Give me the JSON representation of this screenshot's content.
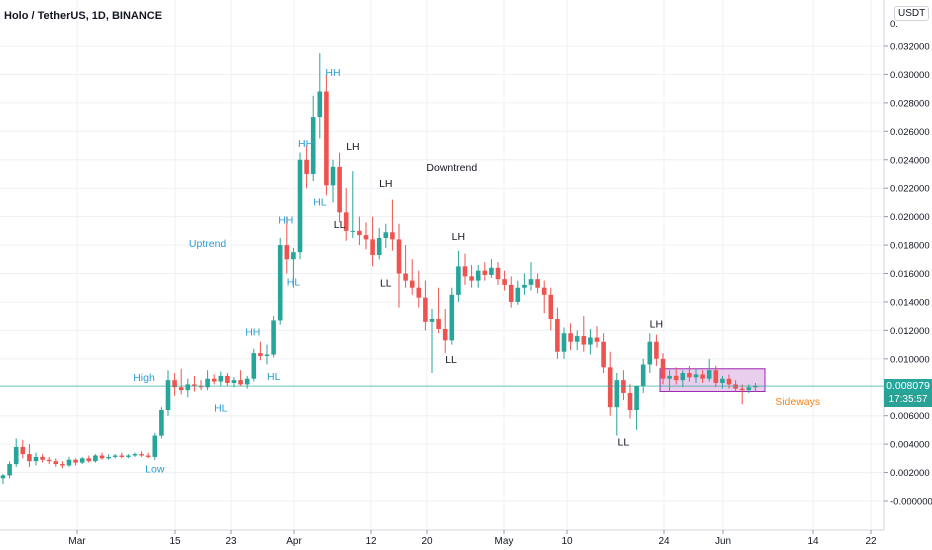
{
  "title": "Holo / TetherUS, 1D, BINANCE",
  "unit_badge": "USDT",
  "last_price": "0.008079",
  "countdown": "17:35:57",
  "colors": {
    "up": "#26a69a",
    "down": "#ef5350",
    "label_blue": "#2b9ed5",
    "label_black": "#131722",
    "label_orange": "#f7841c",
    "box_fill": "#e1bee7",
    "box_stroke": "#9c27b0",
    "price_line": "#26a69a",
    "grid": "#eef0f4"
  },
  "chart_data": {
    "type": "candlestick",
    "y_ticks": [
      "0.032000",
      "0.030000",
      "0.028000",
      "0.026000",
      "0.024000",
      "0.022000",
      "0.020000",
      "0.018000",
      "0.016000",
      "0.014000",
      "0.012000",
      "0.010000",
      "0.006000",
      "0.004000",
      "0.002000",
      "-0.000000"
    ],
    "y_top_tick_visible": "0.",
    "x_ticks": [
      "Mar",
      "15",
      "23",
      "Apr",
      "12",
      "20",
      "May",
      "10",
      "24",
      "Jun",
      "14",
      "22"
    ],
    "ylim": [
      -0.0005,
      0.0335
    ],
    "candles": [
      {
        "o": 0.0016,
        "h": 0.0019,
        "l": 0.0012,
        "c": 0.0018
      },
      {
        "o": 0.0018,
        "h": 0.0028,
        "l": 0.0016,
        "c": 0.0026
      },
      {
        "o": 0.0026,
        "h": 0.0044,
        "l": 0.0024,
        "c": 0.0038
      },
      {
        "o": 0.0038,
        "h": 0.0043,
        "l": 0.003,
        "c": 0.0033
      },
      {
        "o": 0.0033,
        "h": 0.004,
        "l": 0.0024,
        "c": 0.0028
      },
      {
        "o": 0.0028,
        "h": 0.0034,
        "l": 0.0025,
        "c": 0.0031
      },
      {
        "o": 0.0031,
        "h": 0.0033,
        "l": 0.0027,
        "c": 0.0029
      },
      {
        "o": 0.0029,
        "h": 0.0031,
        "l": 0.0026,
        "c": 0.0028
      },
      {
        "o": 0.0028,
        "h": 0.003,
        "l": 0.0024,
        "c": 0.0026
      },
      {
        "o": 0.0026,
        "h": 0.0028,
        "l": 0.0023,
        "c": 0.0025
      },
      {
        "o": 0.0025,
        "h": 0.0031,
        "l": 0.0024,
        "c": 0.0029
      },
      {
        "o": 0.0029,
        "h": 0.003,
        "l": 0.0025,
        "c": 0.0027
      },
      {
        "o": 0.0027,
        "h": 0.0031,
        "l": 0.0026,
        "c": 0.003
      },
      {
        "o": 0.003,
        "h": 0.0032,
        "l": 0.0027,
        "c": 0.0028
      },
      {
        "o": 0.0028,
        "h": 0.0033,
        "l": 0.0027,
        "c": 0.0032
      },
      {
        "o": 0.0032,
        "h": 0.0034,
        "l": 0.0029,
        "c": 0.003
      },
      {
        "o": 0.003,
        "h": 0.0033,
        "l": 0.0029,
        "c": 0.0031
      },
      {
        "o": 0.0031,
        "h": 0.0033,
        "l": 0.003,
        "c": 0.0032
      },
      {
        "o": 0.0032,
        "h": 0.0034,
        "l": 0.003,
        "c": 0.0031
      },
      {
        "o": 0.0031,
        "h": 0.0033,
        "l": 0.003,
        "c": 0.0032
      },
      {
        "o": 0.0032,
        "h": 0.0034,
        "l": 0.0031,
        "c": 0.0033
      },
      {
        "o": 0.0033,
        "h": 0.0035,
        "l": 0.0031,
        "c": 0.0032
      },
      {
        "o": 0.0032,
        "h": 0.0034,
        "l": 0.003,
        "c": 0.0031
      },
      {
        "o": 0.0031,
        "h": 0.0048,
        "l": 0.0029,
        "c": 0.0046
      },
      {
        "o": 0.0046,
        "h": 0.0066,
        "l": 0.0044,
        "c": 0.0064
      },
      {
        "o": 0.0064,
        "h": 0.0092,
        "l": 0.006,
        "c": 0.0085
      },
      {
        "o": 0.0085,
        "h": 0.009,
        "l": 0.0074,
        "c": 0.008
      },
      {
        "o": 0.008,
        "h": 0.0093,
        "l": 0.0075,
        "c": 0.0078
      },
      {
        "o": 0.0078,
        "h": 0.0086,
        "l": 0.0073,
        "c": 0.0082
      },
      {
        "o": 0.0082,
        "h": 0.0088,
        "l": 0.0077,
        "c": 0.0081
      },
      {
        "o": 0.0081,
        "h": 0.0085,
        "l": 0.0078,
        "c": 0.008
      },
      {
        "o": 0.008,
        "h": 0.0092,
        "l": 0.0078,
        "c": 0.0086
      },
      {
        "o": 0.0086,
        "h": 0.0089,
        "l": 0.0082,
        "c": 0.0084
      },
      {
        "o": 0.0084,
        "h": 0.0091,
        "l": 0.0081,
        "c": 0.0088
      },
      {
        "o": 0.0088,
        "h": 0.009,
        "l": 0.0081,
        "c": 0.0083
      },
      {
        "o": 0.0083,
        "h": 0.0087,
        "l": 0.008,
        "c": 0.0085
      },
      {
        "o": 0.0085,
        "h": 0.0092,
        "l": 0.0081,
        "c": 0.0082
      },
      {
        "o": 0.0082,
        "h": 0.0088,
        "l": 0.0079,
        "c": 0.0086
      },
      {
        "o": 0.0086,
        "h": 0.0107,
        "l": 0.0084,
        "c": 0.0104
      },
      {
        "o": 0.0104,
        "h": 0.0112,
        "l": 0.0099,
        "c": 0.0102
      },
      {
        "o": 0.0102,
        "h": 0.011,
        "l": 0.0096,
        "c": 0.0103
      },
      {
        "o": 0.0103,
        "h": 0.013,
        "l": 0.0101,
        "c": 0.0127
      },
      {
        "o": 0.0127,
        "h": 0.0185,
        "l": 0.0124,
        "c": 0.018
      },
      {
        "o": 0.018,
        "h": 0.02,
        "l": 0.016,
        "c": 0.017
      },
      {
        "o": 0.017,
        "h": 0.0178,
        "l": 0.015,
        "c": 0.0175
      },
      {
        "o": 0.0175,
        "h": 0.0245,
        "l": 0.017,
        "c": 0.024
      },
      {
        "o": 0.024,
        "h": 0.025,
        "l": 0.022,
        "c": 0.023
      },
      {
        "o": 0.023,
        "h": 0.0285,
        "l": 0.0225,
        "c": 0.027
      },
      {
        "o": 0.027,
        "h": 0.0315,
        "l": 0.0255,
        "c": 0.0288
      },
      {
        "o": 0.0288,
        "h": 0.03,
        "l": 0.0215,
        "c": 0.0222
      },
      {
        "o": 0.0222,
        "h": 0.024,
        "l": 0.021,
        "c": 0.0235
      },
      {
        "o": 0.0235,
        "h": 0.0245,
        "l": 0.0196,
        "c": 0.0203
      },
      {
        "o": 0.0203,
        "h": 0.022,
        "l": 0.0183,
        "c": 0.019
      },
      {
        "o": 0.019,
        "h": 0.0232,
        "l": 0.0185,
        "c": 0.019
      },
      {
        "o": 0.019,
        "h": 0.02,
        "l": 0.018,
        "c": 0.0187
      },
      {
        "o": 0.0187,
        "h": 0.0196,
        "l": 0.0177,
        "c": 0.0184
      },
      {
        "o": 0.0184,
        "h": 0.02,
        "l": 0.0165,
        "c": 0.0173
      },
      {
        "o": 0.0173,
        "h": 0.0192,
        "l": 0.017,
        "c": 0.0185
      },
      {
        "o": 0.0185,
        "h": 0.0195,
        "l": 0.0178,
        "c": 0.0189
      },
      {
        "o": 0.0189,
        "h": 0.0212,
        "l": 0.0176,
        "c": 0.0184
      },
      {
        "o": 0.0184,
        "h": 0.0195,
        "l": 0.0136,
        "c": 0.016
      },
      {
        "o": 0.016,
        "h": 0.018,
        "l": 0.015,
        "c": 0.0155
      },
      {
        "o": 0.0155,
        "h": 0.017,
        "l": 0.0145,
        "c": 0.015
      },
      {
        "o": 0.015,
        "h": 0.0162,
        "l": 0.0136,
        "c": 0.0143
      },
      {
        "o": 0.0143,
        "h": 0.0155,
        "l": 0.012,
        "c": 0.0126
      },
      {
        "o": 0.0126,
        "h": 0.0135,
        "l": 0.009,
        "c": 0.0128
      },
      {
        "o": 0.0128,
        "h": 0.015,
        "l": 0.0118,
        "c": 0.0121
      },
      {
        "o": 0.0121,
        "h": 0.0135,
        "l": 0.0104,
        "c": 0.0113
      },
      {
        "o": 0.0113,
        "h": 0.015,
        "l": 0.011,
        "c": 0.0145
      },
      {
        "o": 0.0145,
        "h": 0.0176,
        "l": 0.014,
        "c": 0.0165
      },
      {
        "o": 0.0165,
        "h": 0.0174,
        "l": 0.0152,
        "c": 0.0158
      },
      {
        "o": 0.0158,
        "h": 0.0166,
        "l": 0.015,
        "c": 0.0155
      },
      {
        "o": 0.0155,
        "h": 0.0166,
        "l": 0.015,
        "c": 0.0162
      },
      {
        "o": 0.0162,
        "h": 0.0168,
        "l": 0.0155,
        "c": 0.0159
      },
      {
        "o": 0.0159,
        "h": 0.017,
        "l": 0.0157,
        "c": 0.0164
      },
      {
        "o": 0.0164,
        "h": 0.0168,
        "l": 0.0152,
        "c": 0.0156
      },
      {
        "o": 0.0156,
        "h": 0.0162,
        "l": 0.0148,
        "c": 0.0152
      },
      {
        "o": 0.0152,
        "h": 0.0158,
        "l": 0.0136,
        "c": 0.014
      },
      {
        "o": 0.014,
        "h": 0.0155,
        "l": 0.0138,
        "c": 0.015
      },
      {
        "o": 0.015,
        "h": 0.016,
        "l": 0.0145,
        "c": 0.0152
      },
      {
        "o": 0.0152,
        "h": 0.0168,
        "l": 0.0148,
        "c": 0.0156
      },
      {
        "o": 0.0156,
        "h": 0.016,
        "l": 0.0146,
        "c": 0.015
      },
      {
        "o": 0.015,
        "h": 0.0155,
        "l": 0.0132,
        "c": 0.0145
      },
      {
        "o": 0.0145,
        "h": 0.015,
        "l": 0.012,
        "c": 0.0128
      },
      {
        "o": 0.0128,
        "h": 0.0136,
        "l": 0.01,
        "c": 0.0105
      },
      {
        "o": 0.0105,
        "h": 0.0122,
        "l": 0.01,
        "c": 0.0118
      },
      {
        "o": 0.0118,
        "h": 0.0125,
        "l": 0.0106,
        "c": 0.0112
      },
      {
        "o": 0.0112,
        "h": 0.012,
        "l": 0.0106,
        "c": 0.0116
      },
      {
        "o": 0.0116,
        "h": 0.013,
        "l": 0.0105,
        "c": 0.011
      },
      {
        "o": 0.011,
        "h": 0.0121,
        "l": 0.0103,
        "c": 0.0115
      },
      {
        "o": 0.0115,
        "h": 0.0123,
        "l": 0.0108,
        "c": 0.0112
      },
      {
        "o": 0.0112,
        "h": 0.0118,
        "l": 0.009,
        "c": 0.0094
      },
      {
        "o": 0.0094,
        "h": 0.0105,
        "l": 0.006,
        "c": 0.0066
      },
      {
        "o": 0.0066,
        "h": 0.009,
        "l": 0.0046,
        "c": 0.0085
      },
      {
        "o": 0.0085,
        "h": 0.0092,
        "l": 0.0071,
        "c": 0.0076
      },
      {
        "o": 0.0076,
        "h": 0.0082,
        "l": 0.0058,
        "c": 0.0064
      },
      {
        "o": 0.0064,
        "h": 0.008,
        "l": 0.005,
        "c": 0.0081
      },
      {
        "o": 0.0081,
        "h": 0.01,
        "l": 0.0076,
        "c": 0.0096
      },
      {
        "o": 0.0096,
        "h": 0.0118,
        "l": 0.009,
        "c": 0.0112
      },
      {
        "o": 0.0112,
        "h": 0.0117,
        "l": 0.0095,
        "c": 0.01
      },
      {
        "o": 0.01,
        "h": 0.0104,
        "l": 0.0082,
        "c": 0.0086
      },
      {
        "o": 0.0086,
        "h": 0.0092,
        "l": 0.0077,
        "c": 0.0088
      },
      {
        "o": 0.0088,
        "h": 0.0094,
        "l": 0.0082,
        "c": 0.0085
      },
      {
        "o": 0.0085,
        "h": 0.0092,
        "l": 0.008,
        "c": 0.009
      },
      {
        "o": 0.009,
        "h": 0.0095,
        "l": 0.0084,
        "c": 0.0087
      },
      {
        "o": 0.0087,
        "h": 0.0093,
        "l": 0.0083,
        "c": 0.0089
      },
      {
        "o": 0.0089,
        "h": 0.0092,
        "l": 0.0083,
        "c": 0.0086
      },
      {
        "o": 0.0086,
        "h": 0.01,
        "l": 0.0084,
        "c": 0.0092
      },
      {
        "o": 0.0092,
        "h": 0.0095,
        "l": 0.008,
        "c": 0.0083
      },
      {
        "o": 0.0083,
        "h": 0.0088,
        "l": 0.0079,
        "c": 0.0086
      },
      {
        "o": 0.0086,
        "h": 0.0089,
        "l": 0.0079,
        "c": 0.0082
      },
      {
        "o": 0.0082,
        "h": 0.0085,
        "l": 0.0077,
        "c": 0.0079
      },
      {
        "o": 0.0079,
        "h": 0.0082,
        "l": 0.0068,
        "c": 0.0078
      },
      {
        "o": 0.0078,
        "h": 0.0082,
        "l": 0.0076,
        "c": 0.008
      },
      {
        "o": 0.008,
        "h": 0.0083,
        "l": 0.0077,
        "c": 0.0081
      }
    ],
    "annotations": [
      {
        "text": "High",
        "i": 23,
        "y": 0.00845,
        "color": "label_blue",
        "anchor": "end"
      },
      {
        "text": "Low",
        "i": 23,
        "y": 0.002,
        "color": "label_blue",
        "anchor": "middle"
      },
      {
        "text": "HL",
        "i": 33,
        "y": 0.0063,
        "color": "label_blue",
        "anchor": "middle"
      },
      {
        "text": "HH",
        "i": 39,
        "y": 0.01165,
        "color": "label_blue",
        "anchor": "end"
      },
      {
        "text": "HL",
        "i": 40,
        "y": 0.0085,
        "color": "label_blue",
        "anchor": "start"
      },
      {
        "text": "Uptrend",
        "i": 31,
        "y": 0.01785,
        "color": "label_blue",
        "anchor": "middle"
      },
      {
        "text": "HH",
        "i": 44,
        "y": 0.0195,
        "color": "label_blue",
        "anchor": "end"
      },
      {
        "text": "HL",
        "i": 43,
        "y": 0.01515,
        "color": "label_blue",
        "anchor": "start"
      },
      {
        "text": "HH",
        "i": 47,
        "y": 0.0249,
        "color": "label_blue",
        "anchor": "end"
      },
      {
        "text": "HL",
        "i": 47,
        "y": 0.0208,
        "color": "label_blue",
        "anchor": "start"
      },
      {
        "text": "HH",
        "i": 50,
        "y": 0.0299,
        "color": "label_blue",
        "anchor": "middle"
      },
      {
        "text": "LH",
        "i": 52,
        "y": 0.0247,
        "color": "label_black",
        "anchor": "start"
      },
      {
        "text": "LL",
        "i": 51,
        "y": 0.0192,
        "color": "label_black",
        "anchor": "middle"
      },
      {
        "text": "LH",
        "i": 58,
        "y": 0.0221,
        "color": "label_black",
        "anchor": "middle"
      },
      {
        "text": "LL",
        "i": 58,
        "y": 0.0151,
        "color": "label_black",
        "anchor": "middle"
      },
      {
        "text": "Downtrend",
        "i": 68,
        "y": 0.0232,
        "color": "label_black",
        "anchor": "middle"
      },
      {
        "text": "LH",
        "i": 69,
        "y": 0.01835,
        "color": "label_black",
        "anchor": "middle"
      },
      {
        "text": "LL",
        "i": 67,
        "y": 0.0097,
        "color": "label_black",
        "anchor": "start"
      },
      {
        "text": "LH",
        "i": 99,
        "y": 0.0122,
        "color": "label_black",
        "anchor": "middle"
      },
      {
        "text": "LL",
        "i": 94,
        "y": 0.0039,
        "color": "label_black",
        "anchor": "middle"
      },
      {
        "text": "Sideways",
        "i": 117,
        "y": 0.00675,
        "color": "label_orange",
        "anchor": "start"
      }
    ],
    "sideways_box": {
      "i0": 100,
      "i1": 115,
      "y_low": 0.0077,
      "y_high": 0.0093
    }
  }
}
